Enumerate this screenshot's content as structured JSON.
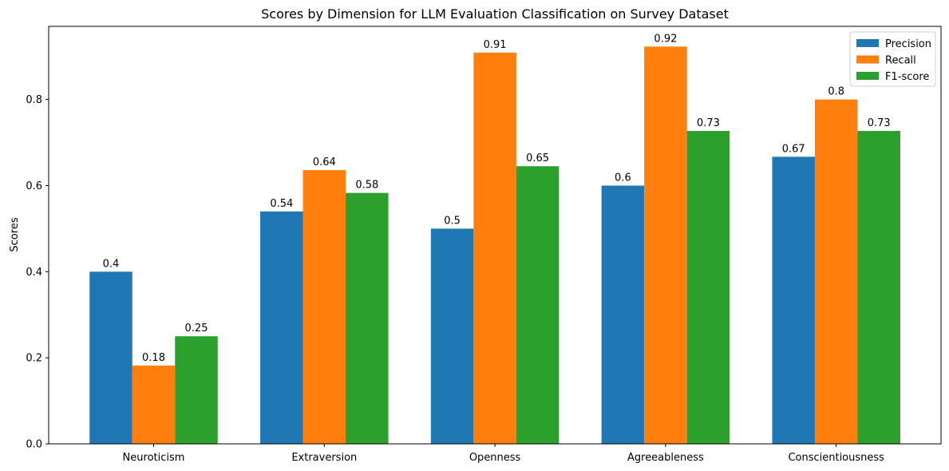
{
  "chart_data": {
    "type": "bar",
    "title": "Scores by Dimension for LLM Evaluation Classification on Survey Dataset",
    "xlabel": "",
    "ylabel": "Scores",
    "ylim": [
      0,
      0.97
    ],
    "yticks": [
      "0.0",
      "0.2",
      "0.4",
      "0.6",
      "0.8"
    ],
    "categories": [
      "Neuroticism",
      "Extraversion",
      "Openness",
      "Agreeableness",
      "Conscientiousness"
    ],
    "series": [
      {
        "name": "Precision",
        "color": "#1f77b4",
        "values": [
          0.4,
          0.54,
          0.5,
          0.6,
          0.667
        ],
        "labels": [
          "0.4",
          "0.54",
          "0.5",
          "0.6",
          "0.67"
        ]
      },
      {
        "name": "Recall",
        "color": "#ff7f0e",
        "values": [
          0.182,
          0.636,
          0.909,
          0.923,
          0.8
        ],
        "labels": [
          "0.18",
          "0.64",
          "0.91",
          "0.92",
          "0.8"
        ]
      },
      {
        "name": "F1-score",
        "color": "#2ca02c",
        "values": [
          0.25,
          0.583,
          0.645,
          0.727,
          0.727
        ],
        "labels": [
          "0.25",
          "0.58",
          "0.65",
          "0.73",
          "0.73"
        ]
      }
    ],
    "grid": false,
    "legend_position": "top-right"
  }
}
